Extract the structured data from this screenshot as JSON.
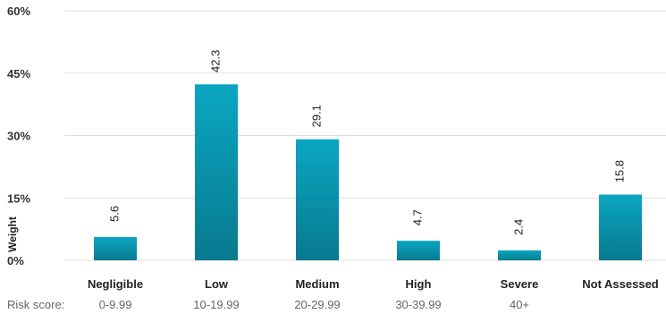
{
  "chart_data": {
    "type": "bar",
    "ylabel": "Weight",
    "ylim": [
      0,
      60
    ],
    "y_ticks": [
      0,
      15,
      30,
      45,
      60
    ],
    "y_tick_labels": [
      "0%",
      "15%",
      "30%",
      "45%",
      "60%"
    ],
    "grid": true,
    "categories": [
      "Negligible",
      "Low",
      "Medium",
      "High",
      "Severe",
      "Not Assessed"
    ],
    "values": [
      5.6,
      42.3,
      29.1,
      4.7,
      2.4,
      15.8
    ],
    "data_labels": [
      "5.6",
      "42.3",
      "29.1",
      "4.7",
      "2.4",
      "15.8"
    ],
    "risk_score_title": "Risk score:",
    "risk_scores": [
      "0-9.99",
      "10-19.99",
      "20-29.99",
      "30-39.99",
      "40+",
      ""
    ],
    "colors": {
      "bar_top": "#0aa6c2",
      "bar_bottom": "#087a8f",
      "grid": "#dddddd"
    }
  }
}
